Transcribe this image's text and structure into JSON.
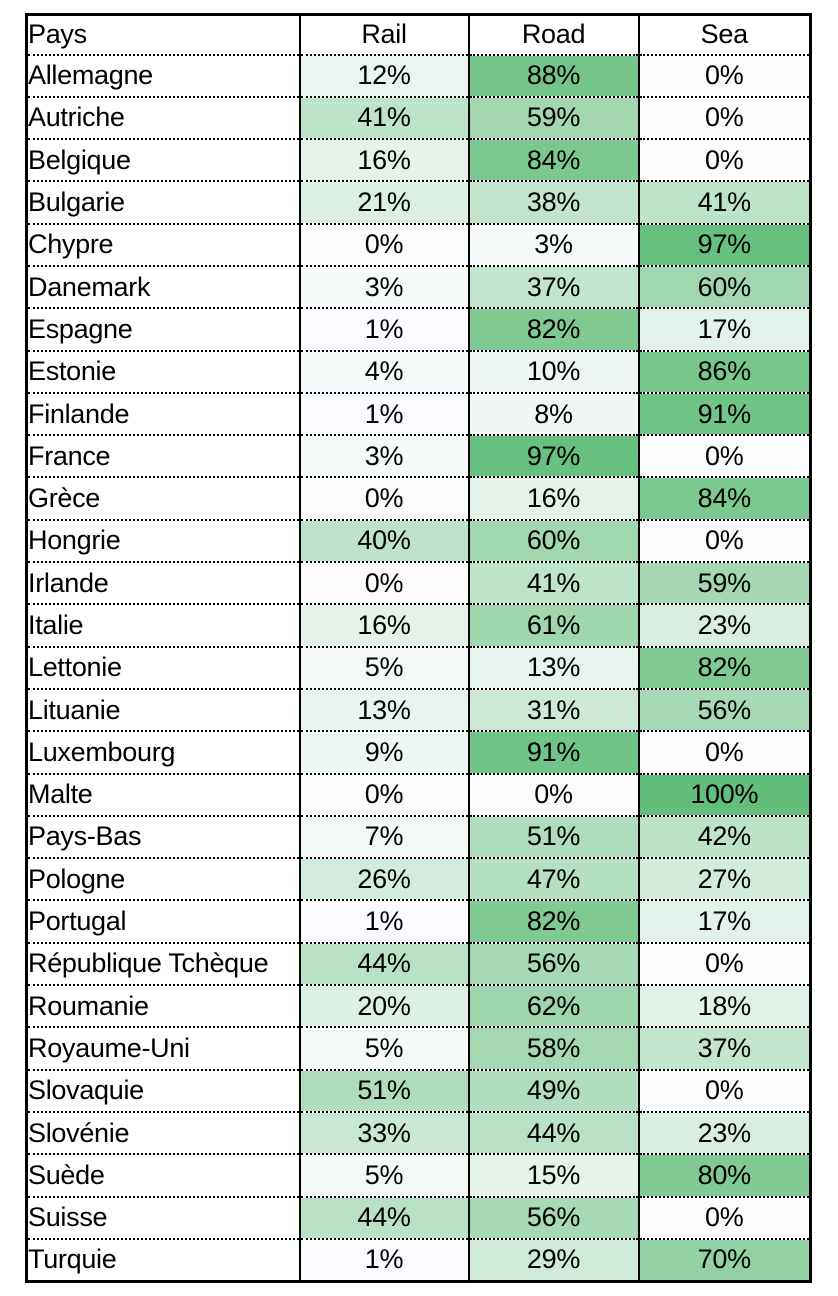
{
  "chart_data": {
    "type": "heatmap",
    "title": "",
    "columns": [
      "Pays",
      "Rail",
      "Road",
      "Sea"
    ],
    "unit": "%",
    "value_range": [
      0,
      100
    ],
    "color_scale": {
      "min_color": "#FCFCFF",
      "max_color": "#63BE7B"
    },
    "rows": [
      [
        "Allemagne",
        12,
        88,
        0
      ],
      [
        "Autriche",
        41,
        59,
        0
      ],
      [
        "Belgique",
        16,
        84,
        0
      ],
      [
        "Bulgarie",
        21,
        38,
        41
      ],
      [
        "Chypre",
        0,
        3,
        97
      ],
      [
        "Danemark",
        3,
        37,
        60
      ],
      [
        "Espagne",
        1,
        82,
        17
      ],
      [
        "Estonie",
        4,
        10,
        86
      ],
      [
        "Finlande",
        1,
        8,
        91
      ],
      [
        "France",
        3,
        97,
        0
      ],
      [
        "Grèce",
        0,
        16,
        84
      ],
      [
        "Hongrie",
        40,
        60,
        0
      ],
      [
        "Irlande",
        0,
        41,
        59
      ],
      [
        "Italie",
        16,
        61,
        23
      ],
      [
        "Lettonie",
        5,
        13,
        82
      ],
      [
        "Lituanie",
        13,
        31,
        56
      ],
      [
        "Luxembourg",
        9,
        91,
        0
      ],
      [
        "Malte",
        0,
        0,
        100
      ],
      [
        "Pays-Bas",
        7,
        51,
        42
      ],
      [
        "Pologne",
        26,
        47,
        27
      ],
      [
        "Portugal",
        1,
        82,
        17
      ],
      [
        "République Tchèque",
        44,
        56,
        0
      ],
      [
        "Roumanie",
        20,
        62,
        18
      ],
      [
        "Royaume-Uni",
        5,
        58,
        37
      ],
      [
        "Slovaquie",
        51,
        49,
        0
      ],
      [
        "Slovénie",
        33,
        44,
        23
      ],
      [
        "Suède",
        5,
        15,
        80
      ],
      [
        "Suisse",
        44,
        56,
        0
      ],
      [
        "Turquie",
        1,
        29,
        70
      ]
    ]
  }
}
